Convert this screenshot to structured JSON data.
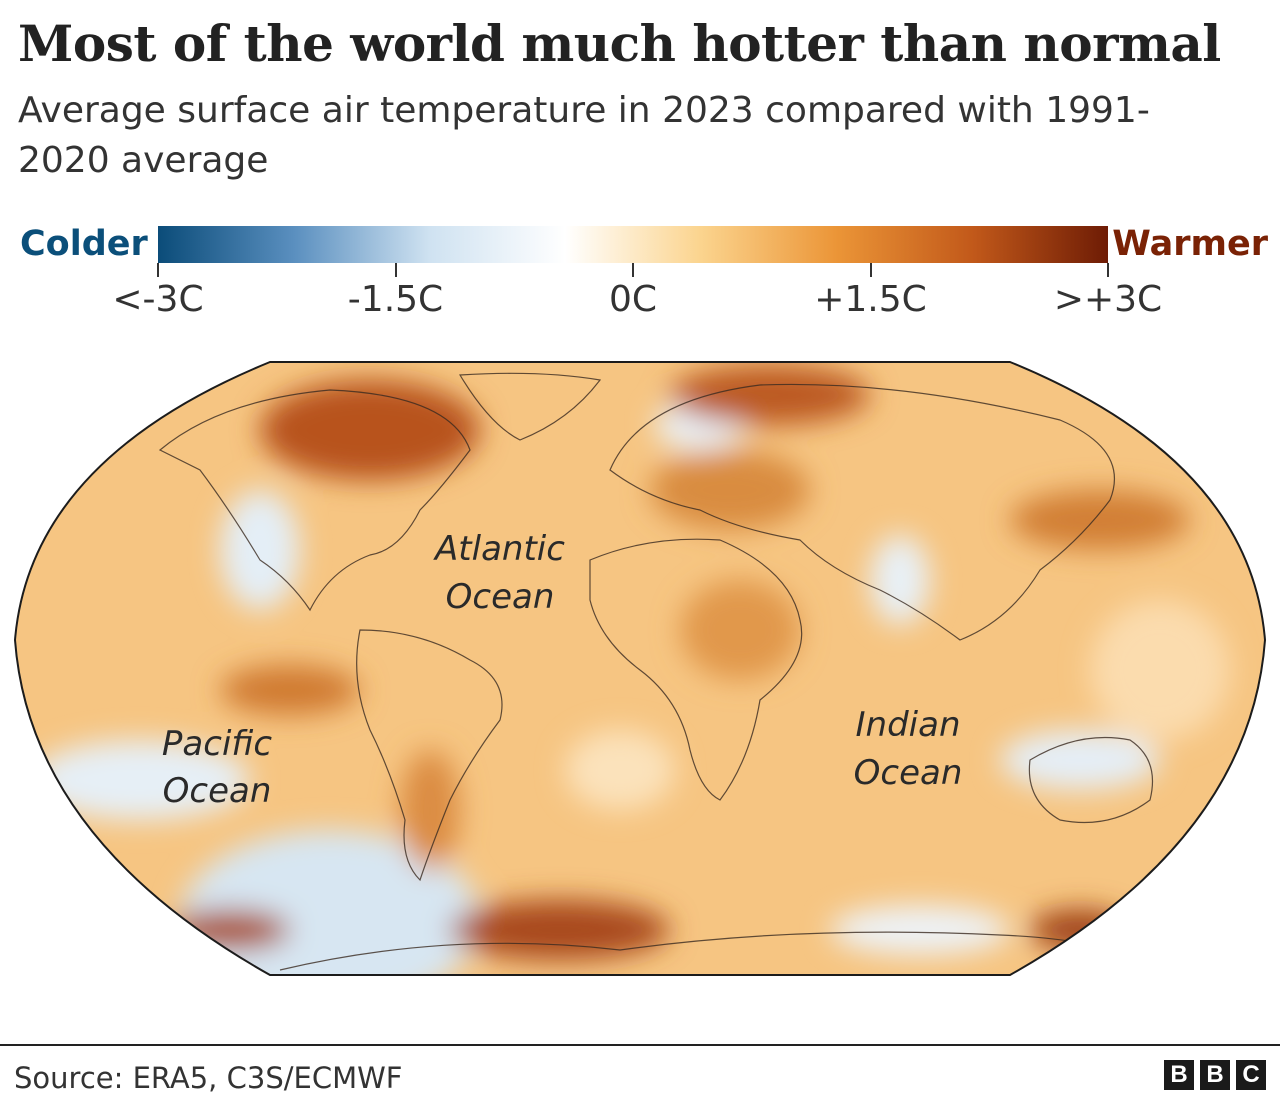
{
  "header": {
    "title": "Most of the world much hotter than normal",
    "subtitle": "Average surface air temperature in 2023 compared with 1991-2020 average"
  },
  "legend": {
    "left_label": "Colder",
    "right_label": "Warmer",
    "left_color": "#0b4f7a",
    "right_color": "#7a2205",
    "ticks": [
      {
        "label": "<-3C",
        "value": -3
      },
      {
        "label": "-1.5C",
        "value": -1.5
      },
      {
        "label": "0C",
        "value": 0
      },
      {
        "label": "+1.5C",
        "value": 1.5
      },
      {
        "label": ">+3C",
        "value": 3
      }
    ],
    "range": [
      -3,
      3
    ],
    "colors": [
      "#0b4c79",
      "#5a8fbf",
      "#cfe2f1",
      "#ffffff",
      "#fbd48e",
      "#eb9537",
      "#c2591a",
      "#6e1c05"
    ]
  },
  "map": {
    "projection": "Robinson",
    "ocean_labels": [
      {
        "line1": "Atlantic",
        "line2": "Ocean"
      },
      {
        "line1": "Pacific",
        "line2": "Ocean"
      },
      {
        "line1": "Indian",
        "line2": "Ocean"
      }
    ],
    "base_color": "#f6c582",
    "colder_patch_color": "#e4eef6",
    "hot_patch_color": "#b4531c"
  },
  "footer": {
    "source": "Source: ERA5, C3S/ECMWF",
    "logo_letters": [
      "B",
      "B",
      "C"
    ]
  }
}
